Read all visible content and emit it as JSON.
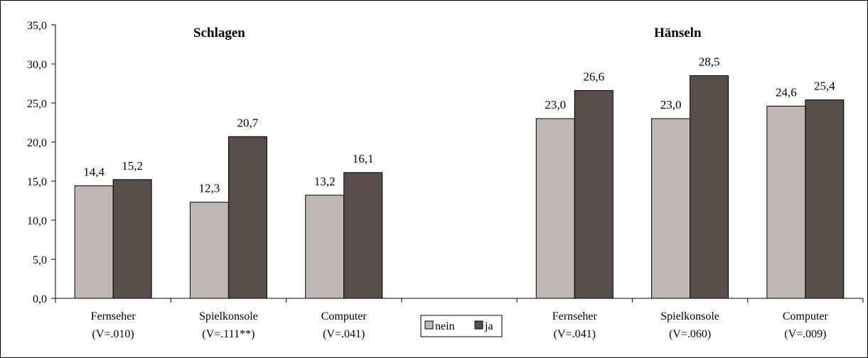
{
  "chart_data": {
    "type": "bar",
    "title": "",
    "ylim": [
      0,
      35
    ],
    "yticks": [
      "0,0",
      "5,0",
      "10,0",
      "15,0",
      "20,0",
      "25,0",
      "30,0",
      "35,0"
    ],
    "ytick_values": [
      0,
      5,
      10,
      15,
      20,
      25,
      30,
      35
    ],
    "categories": [
      [
        "Fernseher",
        "(V=.010)"
      ],
      [
        "Spielkonsole",
        "(V=.111**)"
      ],
      [
        "Computer",
        "(V=.041)"
      ],
      [
        "",
        ""
      ],
      [
        "Fernseher",
        "(V=.041)"
      ],
      [
        "Spielkonsole",
        "(V=.060)"
      ],
      [
        "Computer",
        "(V=.009)"
      ]
    ],
    "series": [
      {
        "name": "nein",
        "color": "#C0B6B3",
        "values": [
          14.4,
          12.3,
          13.2,
          null,
          23.0,
          23.0,
          24.6
        ],
        "labels": [
          "14,4",
          "12,3",
          "13,2",
          "",
          "23,0",
          "23,0",
          "24,6"
        ]
      },
      {
        "name": "ja",
        "color": "#594D4A",
        "values": [
          15.2,
          20.7,
          16.1,
          null,
          26.6,
          28.5,
          25.4
        ],
        "labels": [
          "15,2",
          "20,7",
          "16,1",
          "",
          "26,6",
          "28,5",
          "25,4"
        ]
      }
    ],
    "group_titles": [
      "Schlagen",
      "Hänseln"
    ],
    "legend_placement": "bottom-center",
    "grid": false
  }
}
